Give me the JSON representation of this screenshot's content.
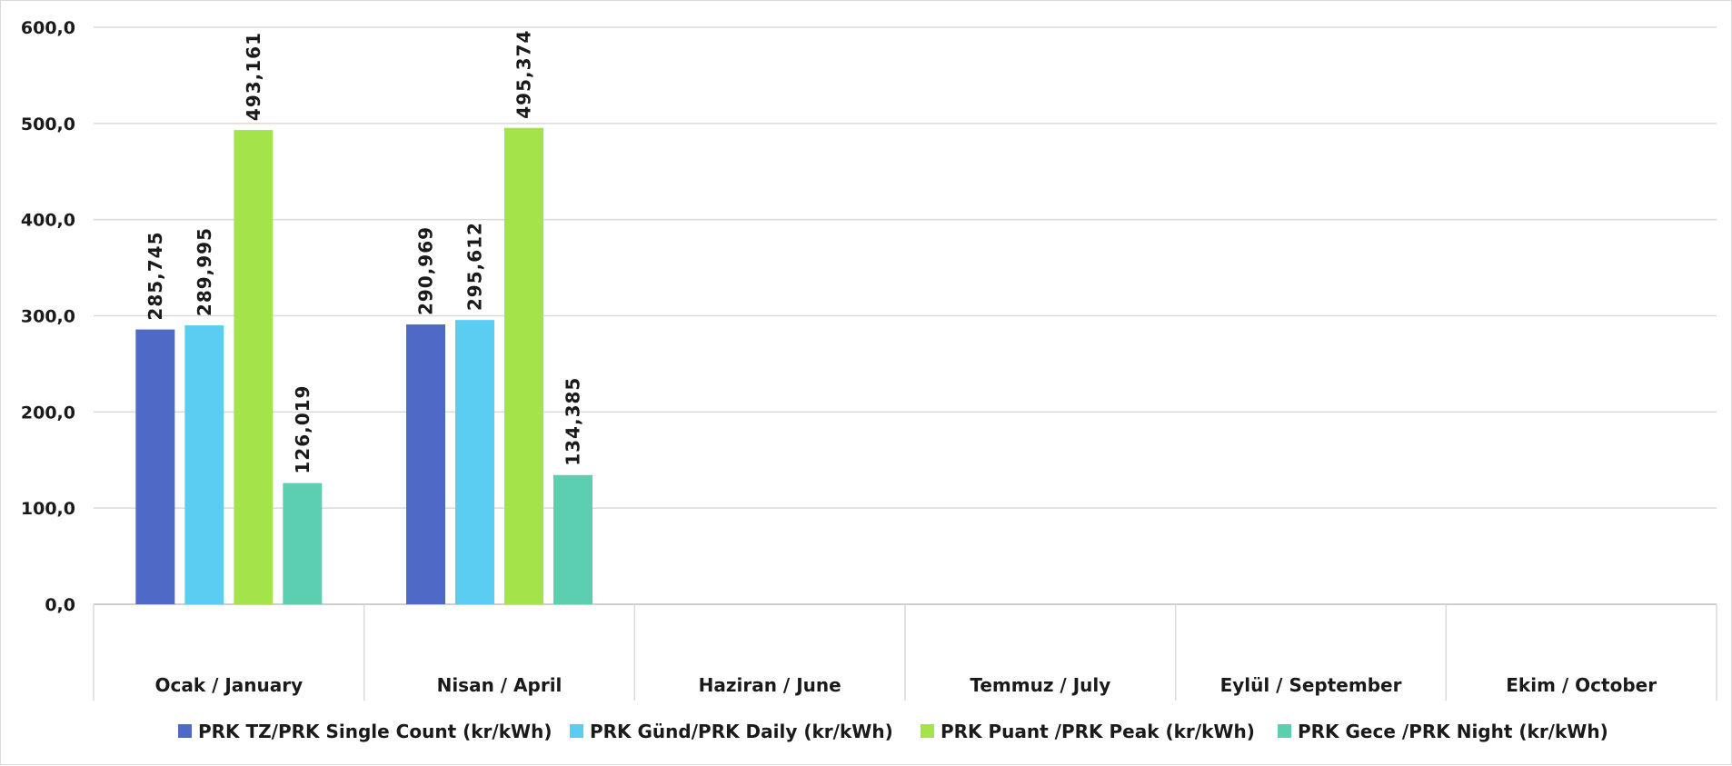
{
  "chart_data": {
    "type": "bar",
    "categories": [
      "Ocak / January",
      "Nisan / April",
      "Haziran / June",
      "Temmuz / July",
      "Eylül / September",
      "Ekim / October"
    ],
    "series": [
      {
        "name": "PRK TZ/PRK Single Count (kr/kWh)",
        "color": "#4f69c6",
        "values": [
          285.745,
          290.969,
          null,
          null,
          null,
          null
        ],
        "labels": [
          "285,745",
          "290,969"
        ]
      },
      {
        "name": "PRK Günd/PRK Daily (kr/kWh)",
        "color": "#5bcdf3",
        "values": [
          289.995,
          295.612,
          null,
          null,
          null,
          null
        ],
        "labels": [
          "289,995",
          "295,612"
        ]
      },
      {
        "name": "PRK Puant /PRK Peak (kr/kWh)",
        "color": "#a4e44a",
        "values": [
          493.161,
          495.374,
          null,
          null,
          null,
          null
        ],
        "labels": [
          "493,161",
          "495,374"
        ]
      },
      {
        "name": "PRK Gece /PRK Night (kr/kWh)",
        "color": "#5ccfb1",
        "values": [
          126.019,
          134.385,
          null,
          null,
          null,
          null
        ],
        "labels": [
          "126,019",
          "134,385"
        ]
      }
    ],
    "yticks": [
      "0,0",
      "100,0",
      "200,0",
      "300,0",
      "400,0",
      "500,0",
      "600,0"
    ],
    "ylim": [
      0,
      600
    ],
    "grid": true,
    "legend": "bottom",
    "title": "",
    "xlabel": "",
    "ylabel": ""
  }
}
